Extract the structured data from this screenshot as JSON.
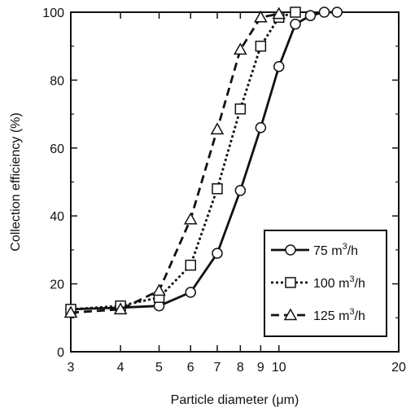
{
  "chart_data": {
    "type": "line",
    "xscale": "log",
    "xlim": [
      3,
      20
    ],
    "ylim": [
      0,
      100
    ],
    "xticks": [
      3,
      4,
      5,
      6,
      7,
      8,
      9,
      10,
      20
    ],
    "xtick_labels": [
      "3",
      "4",
      "5",
      "6",
      "7",
      "8",
      "9",
      "10",
      "20"
    ],
    "yticks": [
      0,
      20,
      40,
      60,
      80,
      100
    ],
    "ytick_labels": [
      "0",
      "20",
      "40",
      "60",
      "80",
      "100"
    ],
    "xlabel": "Particle diameter (μm)",
    "ylabel": "Collection efficiency (%)",
    "legend_position": "bottom-right",
    "series": [
      {
        "name": "75 m3/h",
        "legend_base": "75 m",
        "legend_sup": "3",
        "legend_tail": "/h",
        "marker": "circle",
        "line_style": "solid",
        "x": [
          3,
          4,
          5,
          6,
          7,
          8,
          9,
          10,
          11,
          12,
          13,
          14
        ],
        "y": [
          12.5,
          13,
          13.5,
          17.5,
          29,
          47.5,
          66,
          84,
          96.5,
          99,
          100,
          100
        ]
      },
      {
        "name": "100 m3/h",
        "legend_base": "100 m",
        "legend_sup": "3",
        "legend_tail": "/h",
        "marker": "square",
        "line_style": "dotted",
        "x": [
          3,
          4,
          5,
          6,
          7,
          8,
          9,
          10,
          11
        ],
        "y": [
          12.5,
          13.5,
          16,
          25.5,
          48,
          71.5,
          90,
          98.5,
          100
        ]
      },
      {
        "name": "125 m3/h",
        "legend_base": "125 m",
        "legend_sup": "3",
        "legend_tail": "/h",
        "marker": "triangle",
        "line_style": "dashed",
        "x": [
          3,
          4,
          5,
          6,
          7,
          8,
          9,
          10
        ],
        "y": [
          11.5,
          12.5,
          18,
          39,
          65.5,
          89,
          98.5,
          99.5
        ]
      }
    ]
  }
}
